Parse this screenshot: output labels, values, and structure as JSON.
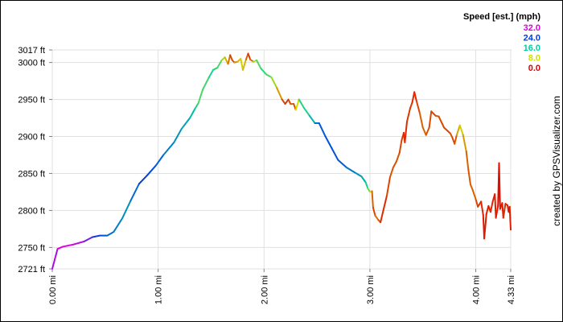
{
  "chart_data": {
    "type": "line",
    "credit": "created by GPSVisualizer.com",
    "x_unit": "mi",
    "y_unit": "ft",
    "xlim": [
      0,
      4.33
    ],
    "ylim": [
      2721,
      3017
    ],
    "x_ticks": [
      {
        "value": 0,
        "label": "0.00 mi"
      },
      {
        "value": 1,
        "label": "1.00 mi"
      },
      {
        "value": 2,
        "label": "2.00 mi"
      },
      {
        "value": 3,
        "label": "3.00 mi"
      },
      {
        "value": 4,
        "label": "4.00 mi"
      },
      {
        "value": 4.33,
        "label": "4.33 mi"
      }
    ],
    "y_ticks": [
      {
        "value": 2721,
        "label": "2721 ft"
      },
      {
        "value": 2750,
        "label": "2750 ft"
      },
      {
        "value": 2800,
        "label": "2800 ft"
      },
      {
        "value": 2850,
        "label": "2850 ft"
      },
      {
        "value": 2900,
        "label": "2900 ft"
      },
      {
        "value": 2950,
        "label": "2950 ft"
      },
      {
        "value": 3000,
        "label": "3000 ft"
      },
      {
        "value": 3017,
        "label": "3017 ft"
      }
    ],
    "legend": {
      "title": "Speed [est.] (mph)",
      "entries": [
        {
          "label": "32.0",
          "color": "#e000e0"
        },
        {
          "label": "24.0",
          "color": "#0040e0"
        },
        {
          "label": "16.0",
          "color": "#00d0a0"
        },
        {
          "label": "8.0",
          "color": "#d0e000"
        },
        {
          "label": "0.0",
          "color": "#e00000"
        }
      ]
    },
    "series": [
      {
        "points": [
          [
            0.0,
            2721,
            28
          ],
          [
            0.05,
            2748,
            32
          ],
          [
            0.1,
            2751,
            32
          ],
          [
            0.2,
            2754,
            32
          ],
          [
            0.3,
            2758,
            30
          ],
          [
            0.38,
            2764,
            26
          ],
          [
            0.45,
            2766,
            24
          ],
          [
            0.52,
            2766,
            22
          ],
          [
            0.58,
            2771,
            21
          ],
          [
            0.66,
            2789,
            20
          ],
          [
            0.74,
            2813,
            19
          ],
          [
            0.82,
            2836,
            24
          ],
          [
            0.9,
            2848,
            24
          ],
          [
            0.98,
            2861,
            23
          ],
          [
            1.05,
            2875,
            21
          ],
          [
            1.15,
            2892,
            20
          ],
          [
            1.22,
            2910,
            19
          ],
          [
            1.3,
            2925,
            18
          ],
          [
            1.35,
            2938,
            16
          ],
          [
            1.38,
            2945,
            14
          ],
          [
            1.42,
            2963,
            12
          ],
          [
            1.48,
            2980,
            15
          ],
          [
            1.52,
            2990,
            15
          ],
          [
            1.56,
            2993,
            14
          ],
          [
            1.6,
            3003,
            12
          ],
          [
            1.63,
            3007,
            8
          ],
          [
            1.66,
            2998,
            5
          ],
          [
            1.68,
            3010,
            3
          ],
          [
            1.7,
            3003,
            2
          ],
          [
            1.72,
            3000,
            4
          ],
          [
            1.75,
            3001,
            6
          ],
          [
            1.78,
            3005,
            7
          ],
          [
            1.8,
            2990,
            8
          ],
          [
            1.83,
            3004,
            5
          ],
          [
            1.85,
            3012,
            2
          ],
          [
            1.87,
            3004,
            2
          ],
          [
            1.9,
            3001,
            6
          ],
          [
            1.93,
            3003,
            12
          ],
          [
            1.97,
            2992,
            14
          ],
          [
            2.02,
            2984,
            14
          ],
          [
            2.07,
            2980,
            12
          ],
          [
            2.12,
            2966,
            8
          ],
          [
            2.17,
            2950,
            3
          ],
          [
            2.2,
            2944,
            2
          ],
          [
            2.23,
            2950,
            2
          ],
          [
            2.25,
            2944,
            3
          ],
          [
            2.28,
            2944,
            4
          ],
          [
            2.3,
            2936,
            2
          ],
          [
            2.33,
            2950,
            14
          ],
          [
            2.38,
            2938,
            15
          ],
          [
            2.43,
            2928,
            15
          ],
          [
            2.48,
            2918,
            20
          ],
          [
            2.52,
            2918,
            22
          ],
          [
            2.58,
            2900,
            23
          ],
          [
            2.64,
            2884,
            23
          ],
          [
            2.7,
            2868,
            23
          ],
          [
            2.78,
            2858,
            22
          ],
          [
            2.86,
            2851,
            20
          ],
          [
            2.92,
            2846,
            19
          ],
          [
            2.96,
            2838,
            17
          ],
          [
            2.98,
            2830,
            14
          ],
          [
            3.0,
            2825,
            10
          ],
          [
            3.02,
            2826,
            6
          ],
          [
            3.03,
            2804,
            1
          ],
          [
            3.05,
            2793,
            4
          ],
          [
            3.08,
            2787,
            4
          ],
          [
            3.1,
            2784,
            2
          ],
          [
            3.13,
            2802,
            1
          ],
          [
            3.16,
            2820,
            2
          ],
          [
            3.19,
            2845,
            3
          ],
          [
            3.22,
            2858,
            3
          ],
          [
            3.25,
            2866,
            3
          ],
          [
            3.28,
            2878,
            3
          ],
          [
            3.3,
            2895,
            2
          ],
          [
            3.32,
            2905,
            2
          ],
          [
            3.33,
            2892,
            1
          ],
          [
            3.35,
            2920,
            2
          ],
          [
            3.38,
            2938,
            2
          ],
          [
            3.4,
            2946,
            2
          ],
          [
            3.42,
            2960,
            1
          ],
          [
            3.44,
            2948,
            2
          ],
          [
            3.47,
            2932,
            3
          ],
          [
            3.5,
            2912,
            4
          ],
          [
            3.53,
            2902,
            3
          ],
          [
            3.56,
            2912,
            3
          ],
          [
            3.58,
            2934,
            2
          ],
          [
            3.62,
            2928,
            3
          ],
          [
            3.65,
            2927,
            3
          ],
          [
            3.68,
            2918,
            2
          ],
          [
            3.7,
            2912,
            3
          ],
          [
            3.73,
            2908,
            2
          ],
          [
            3.76,
            2904,
            3
          ],
          [
            3.78,
            2898,
            3
          ],
          [
            3.8,
            2890,
            2
          ],
          [
            3.82,
            2902,
            4
          ],
          [
            3.85,
            2915,
            8
          ],
          [
            3.88,
            2902,
            7
          ],
          [
            3.91,
            2880,
            4
          ],
          [
            3.93,
            2855,
            3
          ],
          [
            3.95,
            2835,
            3
          ],
          [
            3.97,
            2828,
            4
          ],
          [
            4.0,
            2815,
            3
          ],
          [
            4.02,
            2805,
            2
          ],
          [
            4.05,
            2812,
            2
          ],
          [
            4.07,
            2794,
            1
          ],
          [
            4.08,
            2762,
            1
          ],
          [
            4.1,
            2795,
            1
          ],
          [
            4.12,
            2806,
            1
          ],
          [
            4.14,
            2798,
            1
          ],
          [
            4.16,
            2812,
            2
          ],
          [
            4.18,
            2822,
            1
          ],
          [
            4.19,
            2790,
            1
          ],
          [
            4.21,
            2806,
            1
          ],
          [
            4.22,
            2864,
            0
          ],
          [
            4.23,
            2802,
            1
          ],
          [
            4.25,
            2810,
            1
          ],
          [
            4.26,
            2790,
            1
          ],
          [
            4.28,
            2809,
            2
          ],
          [
            4.3,
            2807,
            1
          ],
          [
            4.31,
            2798,
            1
          ],
          [
            4.32,
            2805,
            1
          ],
          [
            4.33,
            2774,
            1
          ]
        ]
      }
    ]
  }
}
